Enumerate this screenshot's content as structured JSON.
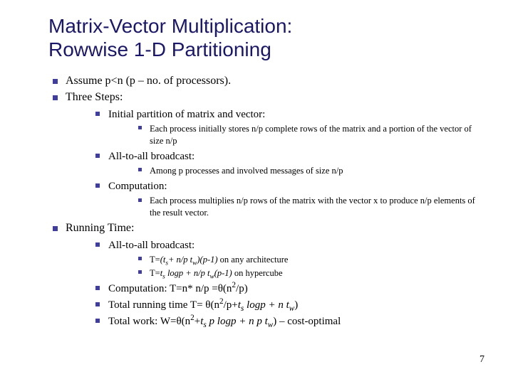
{
  "page": {
    "number": "7",
    "background_color": "#ffffff"
  },
  "title": {
    "line1": "Matrix-Vector Multiplication:",
    "line2": "Rowwise 1-D Partitioning",
    "color": "#1a1768",
    "font_family": "Verdana",
    "font_size_pt": 28
  },
  "bullet": {
    "color": "#3f3d9e",
    "shape": "square"
  },
  "body": {
    "font_family": "Times New Roman",
    "text_color": "#000000",
    "lvl1_fontsize_pt": 16,
    "lvl2_fontsize_pt": 15,
    "lvl3_fontsize_pt": 12.5,
    "items": [
      {
        "text": "Assume p<n (p – no. of processors).",
        "level": 1
      },
      {
        "text": "Three Steps:",
        "level": 1,
        "children": [
          {
            "text": "Initial partition of matrix and vector:",
            "level": 2,
            "children": [
              {
                "text": "Each process initially stores n/p complete rows of the matrix and a portion of the vector of size n/p",
                "level": 3
              }
            ]
          },
          {
            "text": "All-to-all broadcast:",
            "level": 2,
            "children": [
              {
                "text": "Among p processes and involved messages of size n/p",
                "level": 3
              }
            ]
          },
          {
            "text": "Computation:",
            "level": 2,
            "children": [
              {
                "text": "Each process multiplies n/p rows of the matrix with the vector x to produce n/p elements of the result vector.",
                "level": 3
              }
            ]
          }
        ]
      },
      {
        "text": "Running Time:",
        "level": 1,
        "children": [
          {
            "text": "All-to-all broadcast:",
            "level": 2,
            "children": [
              {
                "html": "T=<span class=\"i\">(t<sub>s</sub>+ n/p t<sub>w</sub>)(p-1)</span> on any architecture",
                "level": 3
              },
              {
                "html": "T=<span class=\"i\">t<sub>s</sub> logp + n/p t<sub>w</sub>(p-1)</span> on hypercube",
                "level": 3
              }
            ]
          },
          {
            "html": "Computation: T=n* n/p =θ(n<sup>2</sup>/p)",
            "level": 2
          },
          {
            "html": "Total running time T= θ(n<sup>2</sup>/p+<span class=\"i\">t<sub>s</sub> logp + n t<sub>w</sub></span>)",
            "level": 2
          },
          {
            "html": "Total work: W=θ(n<sup>2</sup>+<span class=\"i\">t<sub>s</sub> p logp + n p t<sub>w</sub></span>) – cost-optimal",
            "level": 2
          }
        ]
      }
    ]
  }
}
